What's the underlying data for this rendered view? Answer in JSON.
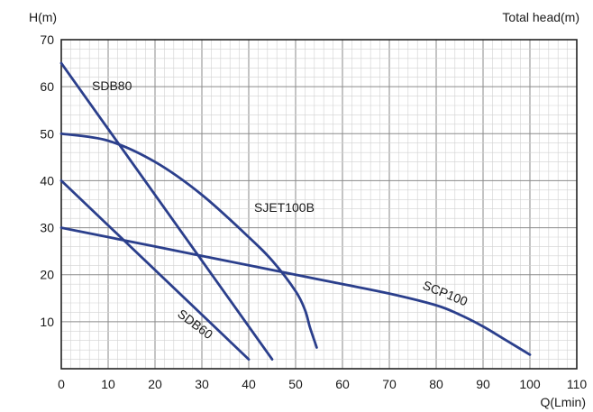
{
  "chart_data": {
    "type": "line",
    "title": "",
    "ylabel": "H(m)",
    "ylabel_right": "Total head(m)",
    "xlabel": "Q(Lmin)",
    "xlim": [
      0,
      110
    ],
    "ylim": [
      0,
      70
    ],
    "x_ticks": [
      0,
      10,
      20,
      30,
      40,
      50,
      60,
      70,
      80,
      90,
      100,
      110
    ],
    "y_ticks": [
      10,
      20,
      30,
      40,
      50,
      60,
      70
    ],
    "grid": true,
    "line_color": "#2b3f8c",
    "series": [
      {
        "name": "SDB80",
        "x": [
          0,
          45
        ],
        "y": [
          65,
          2
        ]
      },
      {
        "name": "SDB60",
        "x": [
          0,
          40
        ],
        "y": [
          40,
          2
        ]
      },
      {
        "name": "SJET100B",
        "x": [
          0,
          10,
          20,
          30,
          40,
          45,
          50,
          52,
          53,
          54,
          54.5
        ],
        "y": [
          50,
          48.5,
          44,
          37,
          28,
          23,
          16.5,
          12.5,
          9,
          6,
          4.5
        ]
      },
      {
        "name": "SCP100",
        "x": [
          0,
          20,
          40,
          50,
          60,
          70,
          80,
          85,
          90,
          95,
          100
        ],
        "y": [
          30,
          26,
          22,
          20,
          18,
          16,
          13.5,
          11.5,
          9,
          6,
          3
        ]
      }
    ]
  }
}
